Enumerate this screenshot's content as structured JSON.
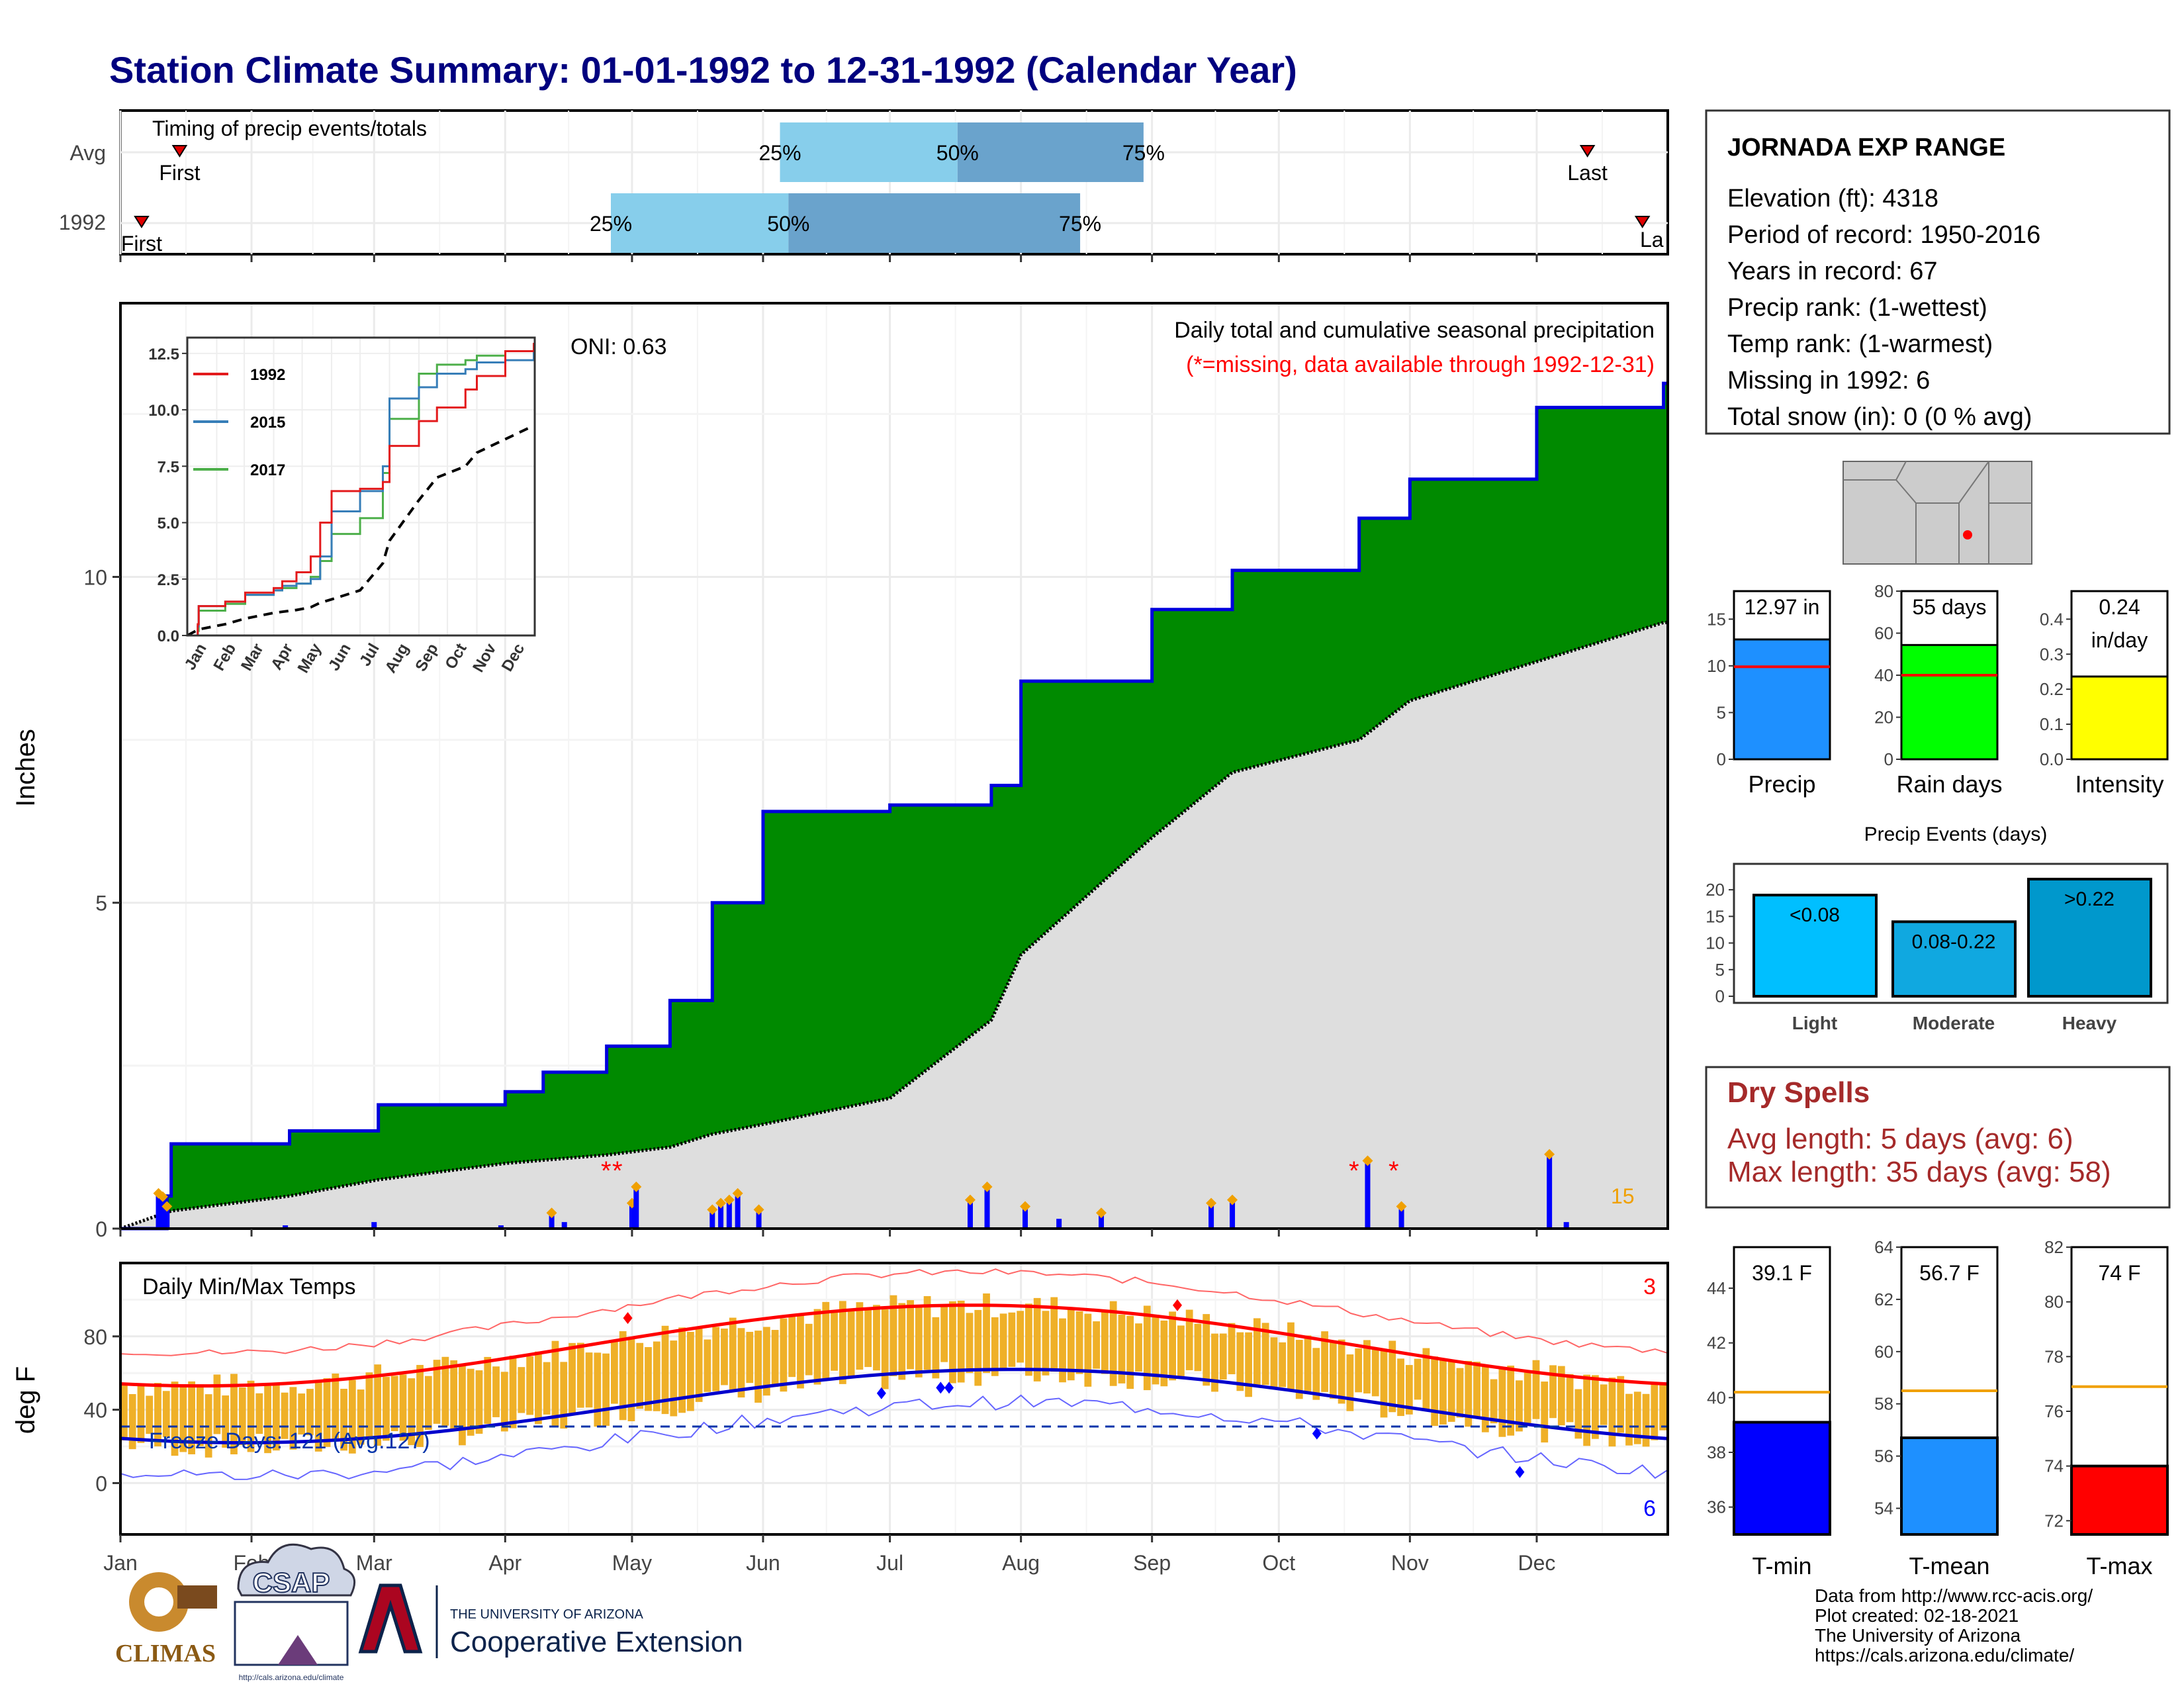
{
  "title": "Station Climate Summary: 01-01-1992 to 12-31-1992 (Calendar Year)",
  "colors": {
    "title": "#00007f",
    "precip_fill": "#008a00",
    "climo_fill": "#dedede",
    "bar_blue": "#0000ff",
    "orange": "#f0a000",
    "temp_bar": "#efb028",
    "red": "#ff0000",
    "light_blue": "#87ceeb",
    "steel_blue": "#6aa3cc"
  },
  "timing": {
    "label": "Timing of precip events/totals",
    "rows": [
      "Avg",
      "1992"
    ],
    "first_label": "First",
    "last_label": "Last",
    "last_label_clipped": "La",
    "pct_labels": [
      "25%",
      "50%",
      "75%"
    ],
    "avg": {
      "first_day": 14,
      "p25": 156,
      "p50": 198,
      "p75": 242,
      "last_day": 347
    },
    "yr": {
      "first_day": 5,
      "p25": 116,
      "p50": 158,
      "p75": 227,
      "last_day": 360
    }
  },
  "precip": {
    "ylabel": "Inches",
    "yticks": [
      "0",
      "5",
      "10"
    ],
    "oni": "ONI: 0.63",
    "legend_title": "Daily total and cumulative seasonal precipitation",
    "missing_note": "(*=missing, data available through 1992-12-31)",
    "max_daily_label": "15"
  },
  "inset": {
    "yticks": [
      "0.0",
      "2.5",
      "5.0",
      "7.5",
      "10.0",
      "12.5"
    ],
    "xticks": [
      "Jan",
      "Feb",
      "Mar",
      "Apr",
      "May",
      "Jun",
      "Jul",
      "Aug",
      "Sep",
      "Oct",
      "Nov",
      "Dec"
    ],
    "series": [
      {
        "name": "1992",
        "color": "#e31a1c"
      },
      {
        "name": "2015",
        "color": "#377eb8"
      },
      {
        "name": "2017",
        "color": "#4daf4a"
      }
    ]
  },
  "temps": {
    "ylabel": "deg F",
    "yticks": [
      "0",
      "40",
      "80"
    ],
    "label": "Daily Min/Max Temps",
    "freeze": "Freeze Days: 121 (Avg.127)",
    "count_top": "3",
    "count_bottom": "6"
  },
  "months": [
    "Jan",
    "Feb",
    "Mar",
    "Apr",
    "May",
    "Jun",
    "Jul",
    "Aug",
    "Sep",
    "Oct",
    "Nov",
    "Dec"
  ],
  "station": {
    "name": "JORNADA EXP RANGE",
    "lines": [
      "Elevation (ft): 4318",
      "Period of record: 1950-2016",
      "Years in record: 67",
      "Precip rank:  (1-wettest)",
      "Temp rank:  (1-warmest)",
      "Missing in 1992: 6",
      "Total snow (in): 0 (0 % avg)"
    ]
  },
  "mini_bars": [
    {
      "label": "Precip",
      "value_text": "12.97 in",
      "value": 12.97,
      "avg": 9.9,
      "ymax": 18,
      "yticks": [
        "0",
        "5",
        "10",
        "15"
      ],
      "color": "#1e90ff"
    },
    {
      "label": "Rain days",
      "value_text": "55 days",
      "value": 55,
      "avg": 40,
      "ymax": 80,
      "yticks": [
        "0",
        "20",
        "40",
        "60",
        "80"
      ],
      "color": "#00ff00"
    },
    {
      "label": "Intensity",
      "value_text": "0.24",
      "value_text2": "in/day",
      "value": 0.24,
      "avg": 0.24,
      "ymax": 0.48,
      "yticks": [
        "0.0",
        "0.1",
        "0.2",
        "0.3",
        "0.4"
      ],
      "color": "#ffff00"
    }
  ],
  "events": {
    "title": "Precip Events (days)",
    "yticks": [
      "0",
      "5",
      "10",
      "15",
      "20"
    ],
    "bars": [
      {
        "label": "Light",
        "range": "<0.08",
        "value": 19,
        "color": "#00bfff"
      },
      {
        "label": "Moderate",
        "range": "0.08-0.22",
        "value": 14,
        "color": "#10a8e0"
      },
      {
        "label": "Heavy",
        "range": ">0.22",
        "value": 22,
        "color": "#0098cc"
      }
    ]
  },
  "dry_spells": {
    "title": "Dry Spells",
    "avg": "Avg length: 5 days (avg: 6)",
    "max": "Max length: 35 days (avg: 58)"
  },
  "temp_bars": [
    {
      "label": "T-min",
      "value_text": "39.1 F",
      "value": 39.1,
      "avg": 40.2,
      "ymin": 35,
      "ymax": 45.5,
      "yticks": [
        "36",
        "38",
        "40",
        "42",
        "44"
      ],
      "color": "#0000ff"
    },
    {
      "label": "T-mean",
      "value_text": "56.7 F",
      "value": 56.7,
      "avg": 58.5,
      "ymin": 53,
      "ymax": 64,
      "yticks": [
        "54",
        "56",
        "58",
        "60",
        "62",
        "64"
      ],
      "color": "#1e90ff"
    },
    {
      "label": "T-max",
      "value_text": "74 F",
      "value": 74,
      "avg": 76.9,
      "ymin": 71.5,
      "ymax": 82,
      "yticks": [
        "72",
        "74",
        "76",
        "78",
        "80",
        "82"
      ],
      "color": "#ff0000"
    }
  ],
  "footer": {
    "lines": [
      "Data from http://www.rcc-acis.org/",
      "Plot created: 02-18-2021",
      "The University of Arizona",
      "https://cals.arizona.edu/climate/"
    ],
    "climas": "CLIMAS",
    "csap": "CSAP",
    "csap_url": "http://cals.arizona.edu/climate",
    "ua_small": "THE UNIVERSITY OF ARIZONA",
    "ua_big": "Cooperative Extension"
  },
  "chart_data": {
    "type": "area",
    "title": "Daily total and cumulative seasonal precipitation",
    "ylabel": "Inches",
    "ylim": [
      0,
      14.2
    ],
    "x": [
      "1992-01-01",
      "1992-01-12",
      "1992-01-13",
      "1992-02-10",
      "1992-03-02",
      "1992-04-01",
      "1992-04-10",
      "1992-04-25",
      "1992-05-10",
      "1992-05-20",
      "1992-06-01",
      "1992-07-01",
      "1992-07-25",
      "1992-08-01",
      "1992-09-01",
      "1992-09-20",
      "1992-10-20",
      "1992-11-01",
      "1992-12-01",
      "1992-12-31"
    ],
    "series": [
      {
        "name": "1992",
        "values": [
          0,
          0.5,
          1.3,
          1.5,
          1.9,
          2.1,
          2.4,
          2.8,
          3.5,
          5.0,
          6.4,
          6.5,
          6.8,
          8.4,
          9.5,
          10.1,
          10.9,
          11.5,
          12.6,
          12.97
        ]
      },
      {
        "name": "Avg",
        "values": [
          0,
          0.25,
          0.27,
          0.5,
          0.75,
          1.0,
          1.05,
          1.13,
          1.25,
          1.45,
          1.6,
          2.0,
          3.2,
          4.2,
          6.0,
          7.0,
          7.5,
          8.1,
          8.7,
          9.3
        ]
      }
    ],
    "daily_precip": [
      {
        "x": "1992-01-10",
        "y": 0.5
      },
      {
        "x": "1992-01-11",
        "y": 0.45
      },
      {
        "x": "1992-01-12",
        "y": 0.3
      },
      {
        "x": "1992-02-09",
        "y": 0.05
      },
      {
        "x": "1992-03-01",
        "y": 0.1
      },
      {
        "x": "1992-03-31",
        "y": 0.05
      },
      {
        "x": "1992-04-12",
        "y": 0.2
      },
      {
        "x": "1992-04-15",
        "y": 0.1
      },
      {
        "x": "1992-05-01",
        "y": 0.35
      },
      {
        "x": "1992-05-02",
        "y": 0.6
      },
      {
        "x": "1992-05-20",
        "y": 0.25
      },
      {
        "x": "1992-05-22",
        "y": 0.35
      },
      {
        "x": "1992-05-24",
        "y": 0.4
      },
      {
        "x": "1992-05-26",
        "y": 0.5
      },
      {
        "x": "1992-05-31",
        "y": 0.25
      },
      {
        "x": "1992-07-20",
        "y": 0.4
      },
      {
        "x": "1992-07-24",
        "y": 0.6
      },
      {
        "x": "1992-08-02",
        "y": 0.3
      },
      {
        "x": "1992-08-10",
        "y": 0.15
      },
      {
        "x": "1992-08-20",
        "y": 0.2
      },
      {
        "x": "1992-09-15",
        "y": 0.35
      },
      {
        "x": "1992-09-20",
        "y": 0.4
      },
      {
        "x": "1992-10-22",
        "y": 1.0
      },
      {
        "x": "1992-10-30",
        "y": 0.3
      },
      {
        "x": "1992-12-04",
        "y": 1.1
      },
      {
        "x": "1992-12-08",
        "y": 0.1
      }
    ]
  }
}
